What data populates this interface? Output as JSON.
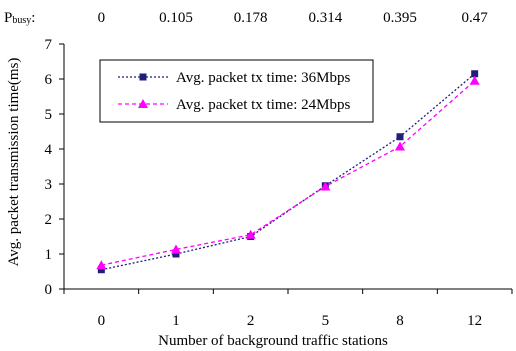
{
  "chart_data": {
    "type": "line",
    "title": "",
    "xlabel": "Number of background traffic stations",
    "ylabel": "Avg. packet transmission time(ms)",
    "categories": [
      "0",
      "1",
      "2",
      "5",
      "8",
      "12"
    ],
    "ylim": [
      0,
      7
    ],
    "yticks": [
      0,
      1,
      2,
      3,
      4,
      5,
      6,
      7
    ],
    "top_axis": {
      "label": "P",
      "label_sub": "busy",
      "label_suffix": ":",
      "values": [
        "0",
        "0.105",
        "0.178",
        "0.314",
        "0.395",
        "0.47"
      ]
    },
    "series": [
      {
        "name": "Avg. packet tx time: 36Mbps",
        "values": [
          0.55,
          1.0,
          1.5,
          2.95,
          4.35,
          6.15
        ],
        "color": "#1f1f7a",
        "marker": "square",
        "line_style": "dotted"
      },
      {
        "name": "Avg. packet tx time: 24Mbps",
        "values": [
          0.68,
          1.13,
          1.55,
          2.93,
          4.07,
          5.95
        ],
        "color": "#ff00ff",
        "marker": "triangle",
        "line_style": "dashed"
      }
    ],
    "legend_position": "top-left inside plot",
    "grid": false
  }
}
